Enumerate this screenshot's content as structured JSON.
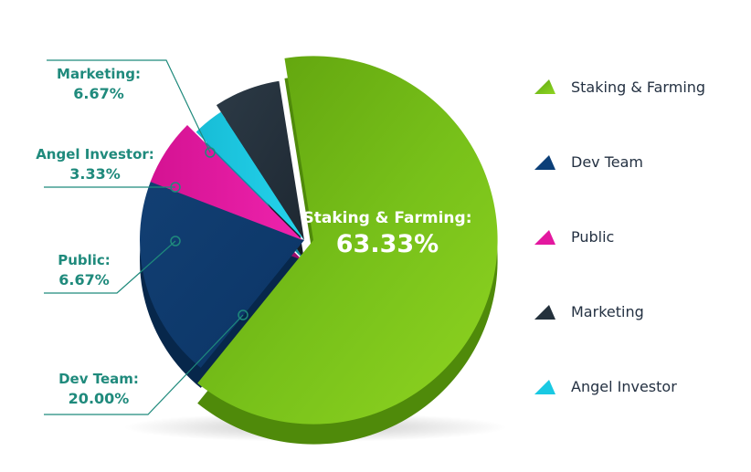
{
  "colors": {
    "staking": "#78c11a",
    "dev": "#0b3f78",
    "public": "#e3189f",
    "marketing": "#24313c",
    "angel": "#19c9e3",
    "callout": "#1f8a7c"
  },
  "chart_data": {
    "type": "pie",
    "title": "",
    "slices": [
      {
        "label": "Staking & Farming",
        "value": 63.33,
        "display": "63.33%"
      },
      {
        "label": "Dev Team",
        "value": 20.0,
        "display": "20.00%"
      },
      {
        "label": "Public",
        "value": 6.67,
        "display": "6.67%"
      },
      {
        "label": "Angel Investor",
        "value": 3.33,
        "display": "3.33%"
      },
      {
        "label": "Marketing",
        "value": 6.67,
        "display": "6.67%"
      }
    ],
    "legend": [
      "Staking & Farming",
      "Dev Team",
      "Public",
      "Marketing",
      "Angel Investor"
    ],
    "legend_position": "right"
  },
  "labels": {
    "center_title": "Staking & Farming:",
    "center_value": "63.33%",
    "callouts": {
      "marketing": {
        "title": "Marketing:",
        "value": "6.67%"
      },
      "angel": {
        "title": "Angel Investor:",
        "value": "3.33%"
      },
      "public": {
        "title": "Public:",
        "value": "6.67%"
      },
      "dev": {
        "title": "Dev Team:",
        "value": "20.00%"
      }
    }
  }
}
